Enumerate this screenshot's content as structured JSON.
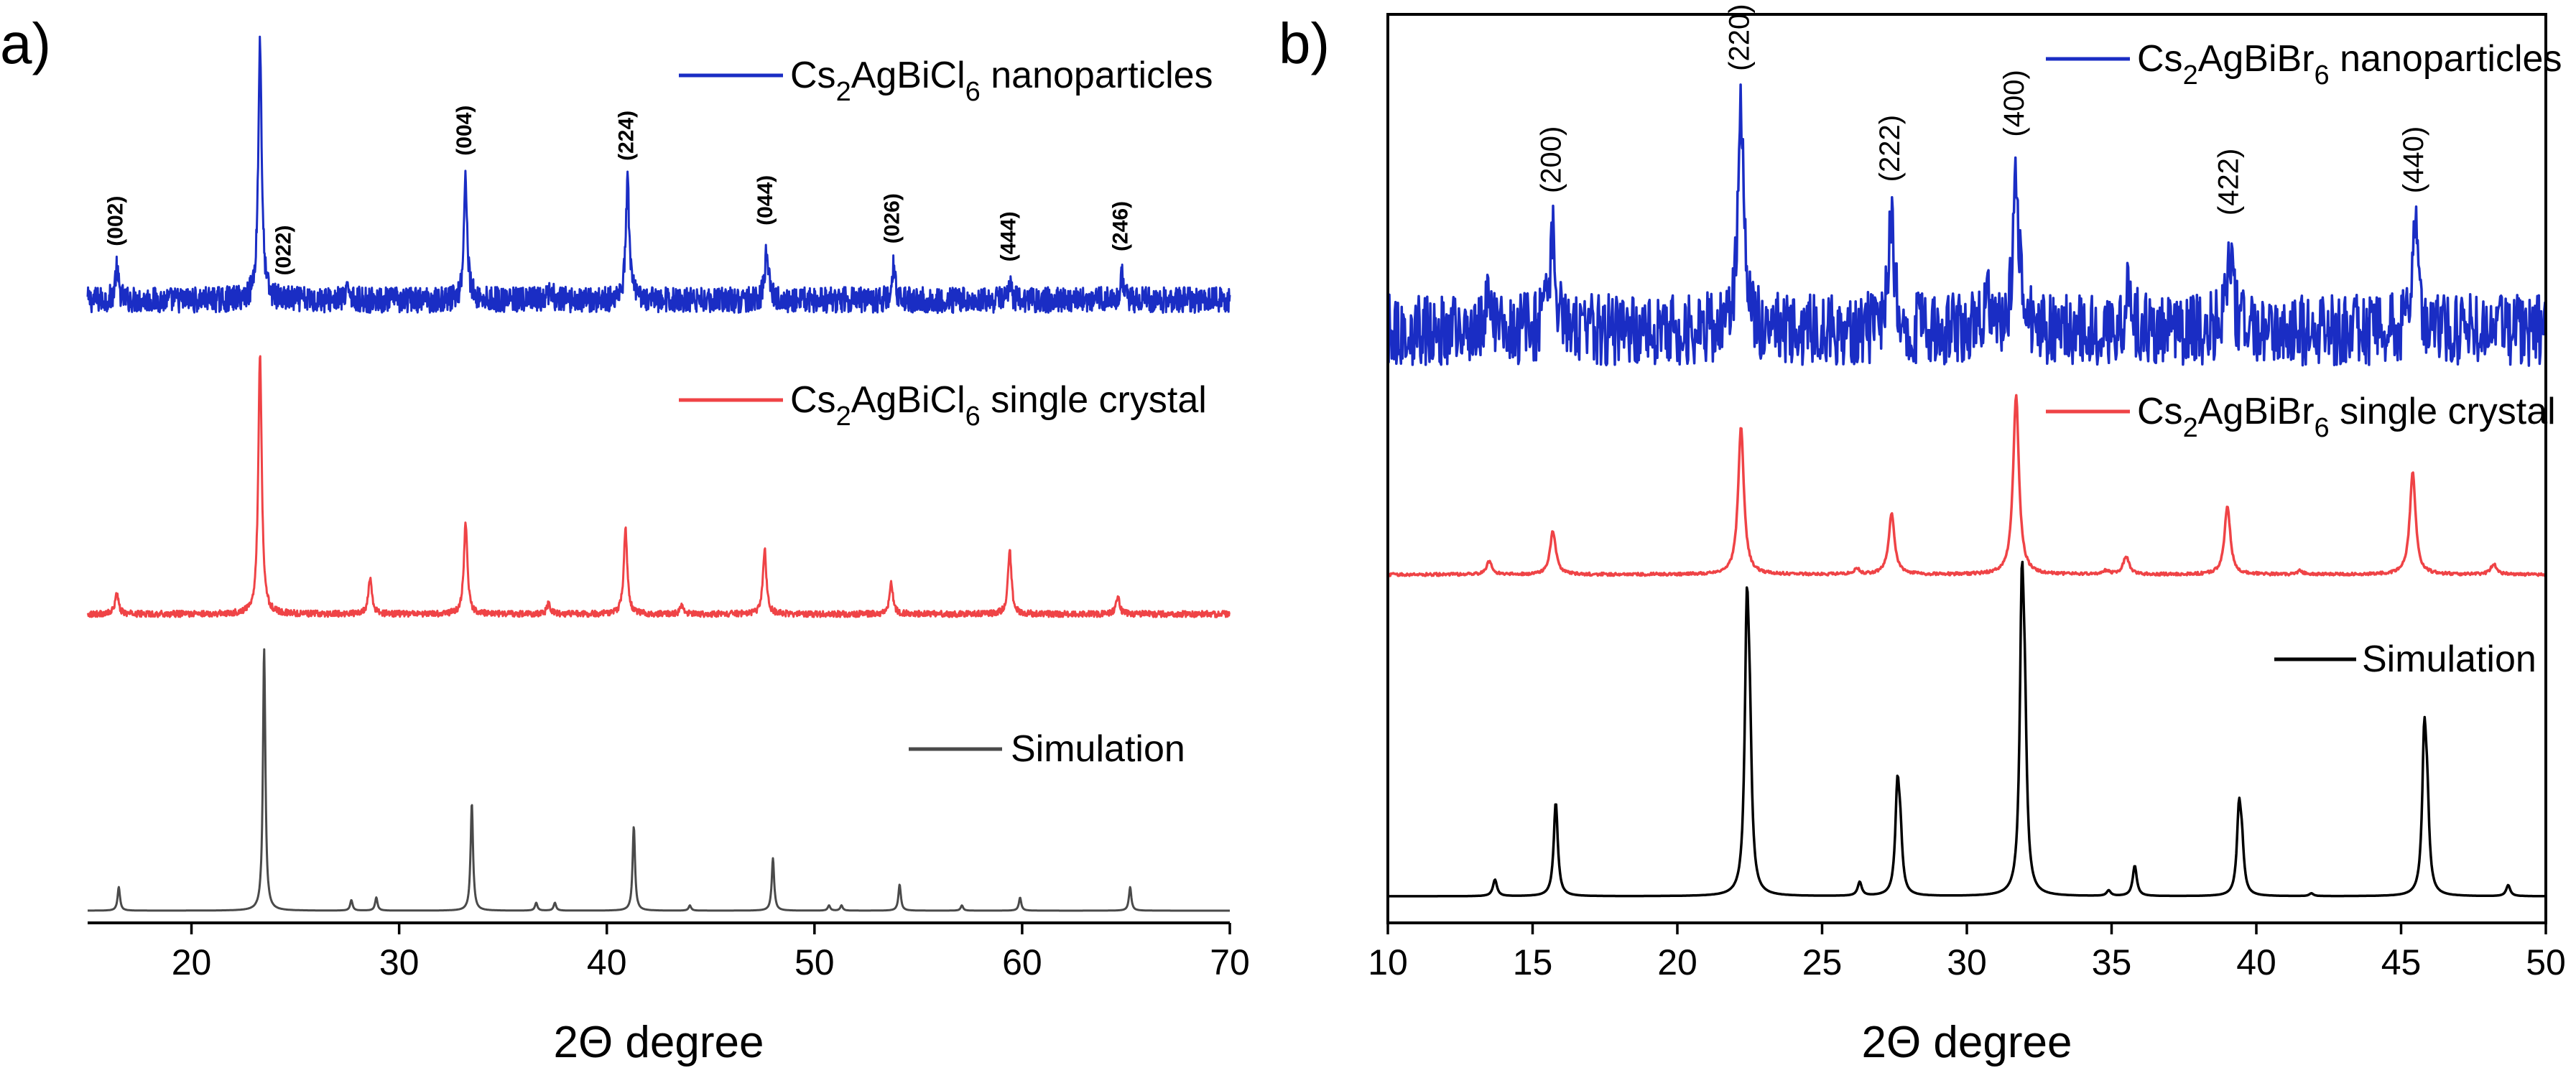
{
  "colors": {
    "nanoparticles": "#1a2dc4",
    "single_crystal": "#ef4346",
    "simulation_a": "#4a4a4a",
    "simulation_b": "#000000"
  },
  "chart_data": [
    {
      "panel": "a)",
      "type": "line",
      "xlabel": "2Θ degree",
      "ylabel": "",
      "xlim": [
        15,
        70
      ],
      "xticks": [
        20,
        30,
        40,
        50,
        60,
        70
      ],
      "y_ticks_shown": false,
      "series": [
        {
          "key": "nano",
          "legend_parts": [
            "Cs",
            "2",
            "AgBiCl",
            "6",
            " nanoparticles"
          ],
          "color": "#1a2dc4",
          "noise": 0.05,
          "peaks": [
            [
              16.4,
              0.12
            ],
            [
              23.3,
              1.0
            ],
            [
              27.6,
              0.05
            ],
            [
              33.2,
              0.47
            ],
            [
              37.3,
              0.04
            ],
            [
              41.0,
              0.45
            ],
            [
              47.7,
              0.2
            ],
            [
              53.8,
              0.13
            ],
            [
              59.4,
              0.06
            ],
            [
              64.8,
              0.1
            ]
          ]
        },
        {
          "key": "crystal",
          "legend_parts": [
            "Cs",
            "2",
            "AgBiCl",
            "6",
            " single crystal"
          ],
          "color": "#ef4346",
          "noise": 0.012,
          "peaks": [
            [
              16.4,
              0.08
            ],
            [
              23.3,
              1.0
            ],
            [
              28.6,
              0.14
            ],
            [
              33.2,
              0.35
            ],
            [
              37.2,
              0.04
            ],
            [
              40.9,
              0.33
            ],
            [
              43.6,
              0.03
            ],
            [
              47.6,
              0.25
            ],
            [
              53.7,
              0.12
            ],
            [
              59.4,
              0.25
            ],
            [
              64.6,
              0.07
            ]
          ]
        },
        {
          "key": "sim",
          "legend_parts": [
            "Simulation"
          ],
          "color": "#4a4a4a",
          "noise": 0.0,
          "peaks": [
            [
              16.5,
              0.09
            ],
            [
              23.5,
              1.0
            ],
            [
              27.7,
              0.04
            ],
            [
              28.9,
              0.05
            ],
            [
              33.5,
              0.41
            ],
            [
              36.6,
              0.03
            ],
            [
              37.5,
              0.03
            ],
            [
              41.3,
              0.32
            ],
            [
              44.0,
              0.02
            ],
            [
              48.0,
              0.2
            ],
            [
              50.7,
              0.02
            ],
            [
              51.3,
              0.02
            ],
            [
              54.1,
              0.1
            ],
            [
              57.1,
              0.02
            ],
            [
              59.9,
              0.05
            ],
            [
              65.2,
              0.09
            ]
          ]
        }
      ],
      "peak_labels": [
        {
          "label": "(002)",
          "x": 16.4
        },
        {
          "label": "(022)",
          "x": 24.5
        },
        {
          "label": "(004)",
          "x": 33.2
        },
        {
          "label": "(224)",
          "x": 41.0
        },
        {
          "label": "(044)",
          "x": 47.7
        },
        {
          "label": "(026)",
          "x": 53.8
        },
        {
          "label": "(444)",
          "x": 59.4
        },
        {
          "label": "(246)",
          "x": 64.8
        }
      ]
    },
    {
      "panel": "b)",
      "type": "line",
      "xlabel": "2Θ degree",
      "ylabel": "",
      "xlim": [
        10,
        50
      ],
      "xticks": [
        10,
        15,
        20,
        25,
        30,
        35,
        40,
        45,
        50
      ],
      "y_ticks_shown": false,
      "series": [
        {
          "key": "nano",
          "legend_parts": [
            "Cs",
            "2",
            "AgBiBr",
            "6",
            " nanoparticles"
          ],
          "color": "#1a2dc4",
          "noise": 0.16,
          "peaks": [
            [
              13.5,
              0.15
            ],
            [
              15.7,
              0.45
            ],
            [
              22.2,
              1.0
            ],
            [
              27.4,
              0.5
            ],
            [
              30.7,
              0.2
            ],
            [
              31.7,
              0.7
            ],
            [
              35.6,
              0.2
            ],
            [
              39.1,
              0.35
            ],
            [
              45.5,
              0.45
            ]
          ]
        },
        {
          "key": "crystal",
          "legend_parts": [
            "Cs",
            "2",
            "AgBiBr",
            "6",
            " single crystal"
          ],
          "color": "#ef4346",
          "noise": 0.008,
          "peaks": [
            [
              13.5,
              0.07
            ],
            [
              15.7,
              0.24
            ],
            [
              22.2,
              0.82
            ],
            [
              26.2,
              0.03
            ],
            [
              27.4,
              0.34
            ],
            [
              31.7,
              1.0
            ],
            [
              34.8,
              0.02
            ],
            [
              35.5,
              0.1
            ],
            [
              39.0,
              0.38
            ],
            [
              41.5,
              0.02
            ],
            [
              45.4,
              0.57
            ],
            [
              48.2,
              0.06
            ]
          ]
        },
        {
          "key": "sim",
          "legend_parts": [
            "Simulation"
          ],
          "color": "#000000",
          "noise": 0.0,
          "peaks": [
            [
              13.7,
              0.06
            ],
            [
              15.8,
              0.34
            ],
            [
              22.4,
              0.93
            ],
            [
              22.5,
              0.45
            ],
            [
              26.3,
              0.05
            ],
            [
              27.6,
              0.36
            ],
            [
              27.7,
              0.18
            ],
            [
              31.9,
              1.0
            ],
            [
              32.0,
              0.5
            ],
            [
              34.9,
              0.02
            ],
            [
              35.8,
              0.11
            ],
            [
              39.4,
              0.29
            ],
            [
              39.5,
              0.15
            ],
            [
              41.9,
              0.01
            ],
            [
              45.8,
              0.53
            ],
            [
              45.9,
              0.27
            ],
            [
              48.7,
              0.04
            ]
          ]
        }
      ],
      "peak_labels": [
        {
          "label": "(200)",
          "x": 15.7
        },
        {
          "label": "(220)",
          "x": 22.2
        },
        {
          "label": "(222)",
          "x": 27.4
        },
        {
          "label": "(400)",
          "x": 31.7
        },
        {
          "label": "(422)",
          "x": 39.1
        },
        {
          "label": "(440)",
          "x": 45.5
        }
      ]
    }
  ]
}
